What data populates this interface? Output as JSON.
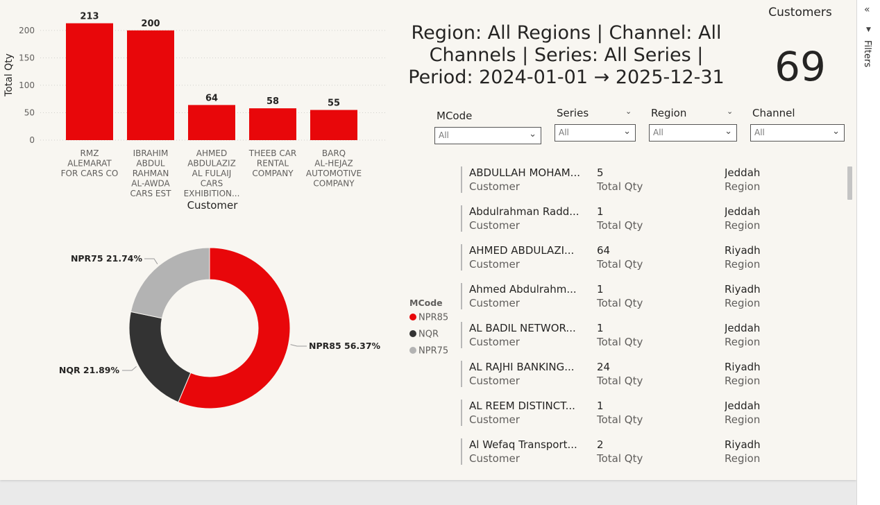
{
  "bar_chart": {
    "chart_data": {
      "type": "bar",
      "categories": [
        [
          "RMZ",
          "ALEMARAT",
          "FOR CARS CO"
        ],
        [
          "IBRAHIM",
          "ABDUL",
          "RAHMAN",
          "AL-AWDA",
          "CARS EST"
        ],
        [
          "AHMED",
          "ABDULAZIZ",
          "AL FULAIJ",
          "CARS",
          "EXHIBITION..."
        ],
        [
          "THEEB CAR",
          "RENTAL",
          "COMPANY"
        ],
        [
          "BARQ",
          "AL-HEJAZ",
          "AUTOMOTIVE",
          "COMPANY"
        ]
      ],
      "values": [
        213,
        200,
        64,
        58,
        55
      ],
      "data_labels": [
        "213",
        "200",
        "64",
        "58",
        "55"
      ],
      "xlabel": "Customer",
      "ylabel": "Total Qty",
      "ylim": [
        0,
        220
      ],
      "yticks": [
        0,
        50,
        100,
        150,
        200
      ],
      "grid": true,
      "bar_color": "#e8070a"
    }
  },
  "donut_chart": {
    "chart_data": {
      "type": "pie",
      "donut": true,
      "slices": [
        {
          "name": "NPR85",
          "value": 56.37,
          "label": "NPR85 56.37%",
          "color": "#e8070a"
        },
        {
          "name": "NQR",
          "value": 21.89,
          "label": "NQR 21.89%",
          "color": "#333333"
        },
        {
          "name": "NPR75",
          "value": 21.74,
          "label": "NPR75 21.74%",
          "color": "#b3b3b3"
        }
      ],
      "legend_title": "MCode",
      "legend_placement": "right"
    }
  },
  "title_card": {
    "lines": [
      "Region: All Regions | Channel: All",
      "Channels | Series: All Series |",
      "Period: 2024-01-01 → 2025-12-31"
    ]
  },
  "kpi": {
    "label": "Customers",
    "value": "69"
  },
  "slicers": [
    {
      "title": "MCode",
      "value": "All"
    },
    {
      "title": "Series",
      "value": "All"
    },
    {
      "title": "Region",
      "value": "All"
    },
    {
      "title": "Channel",
      "value": "All"
    }
  ],
  "customer_list": {
    "labels": {
      "customer": "Customer",
      "qty": "Total Qty",
      "region": "Region"
    },
    "rows": [
      {
        "customer": "ABDULLAH MOHAM...",
        "qty": "5",
        "region": "Jeddah"
      },
      {
        "customer": "Abdulrahman Radd...",
        "qty": "1",
        "region": "Jeddah"
      },
      {
        "customer": "AHMED ABDULAZI...",
        "qty": "64",
        "region": "Riyadh"
      },
      {
        "customer": "Ahmed Abdulrahm...",
        "qty": "1",
        "region": "Riyadh"
      },
      {
        "customer": "AL BADIL NETWOR...",
        "qty": "1",
        "region": "Jeddah"
      },
      {
        "customer": "AL RAJHI BANKING...",
        "qty": "24",
        "region": "Riyadh"
      },
      {
        "customer": "AL REEM DISTINCT...",
        "qty": "1",
        "region": "Jeddah"
      },
      {
        "customer": "Al Wefaq Transport...",
        "qty": "2",
        "region": "Riyadh"
      }
    ]
  },
  "filters_pane": {
    "label": "Filters",
    "collapse_icon": "double-chevron-left-icon"
  }
}
